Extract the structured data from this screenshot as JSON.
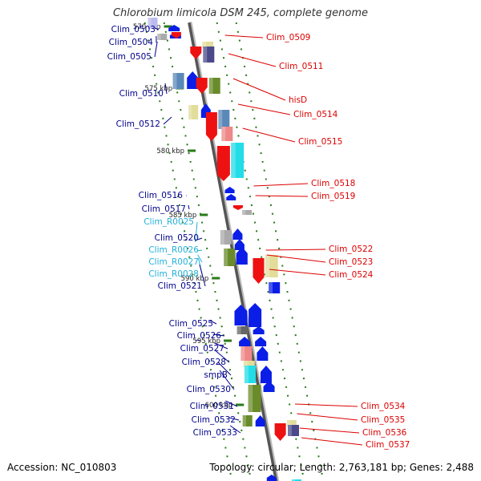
{
  "title": "Chlorobium limicola DSM 245, complete genome",
  "footer": {
    "accession": "Accession: NC_010803",
    "summary": "Topology: circular; Length: 2,763,181 bp; Genes: 2,488"
  },
  "colors": {
    "left_label": "#00008b",
    "right_label": "#dd0000",
    "rna_label": "#22b0d8",
    "backbone": "#999999",
    "tick": "#2a7a1a"
  },
  "scale_labels": [
    "570 kbp",
    "575 kbp",
    "580 kbp",
    "585 kbp",
    "590 kbp",
    "595 kbp",
    "600 kbp"
  ],
  "labels_left": [
    {
      "text": "Clim_0503",
      "kind": "gene"
    },
    {
      "text": "Clim_0504",
      "kind": "gene"
    },
    {
      "text": "Clim_0505",
      "kind": "gene"
    },
    {
      "text": "Clim_0510",
      "kind": "gene"
    },
    {
      "text": "Clim_0512",
      "kind": "gene"
    },
    {
      "text": "Clim_0516",
      "kind": "gene"
    },
    {
      "text": "Clim_0517",
      "kind": "gene"
    },
    {
      "text": "Clim_R0025",
      "kind": "rna"
    },
    {
      "text": "Clim_0520",
      "kind": "gene"
    },
    {
      "text": "Clim_R0026",
      "kind": "rna"
    },
    {
      "text": "Clim_R0027",
      "kind": "rna"
    },
    {
      "text": "Clim_R0028",
      "kind": "rna"
    },
    {
      "text": "Clim_0521",
      "kind": "gene"
    },
    {
      "text": "Clim_0525",
      "kind": "gene"
    },
    {
      "text": "Clim_0526",
      "kind": "gene"
    },
    {
      "text": "Clim_0527",
      "kind": "gene"
    },
    {
      "text": "Clim_0528",
      "kind": "gene"
    },
    {
      "text": "smpB",
      "kind": "gene"
    },
    {
      "text": "Clim_0530",
      "kind": "gene"
    },
    {
      "text": "Clim_0531",
      "kind": "gene"
    },
    {
      "text": "Clim_0532",
      "kind": "gene"
    },
    {
      "text": "Clim_0533",
      "kind": "gene"
    }
  ],
  "labels_right": [
    {
      "text": "Clim_0509",
      "kind": "gene"
    },
    {
      "text": "Clim_0511",
      "kind": "gene"
    },
    {
      "text": "hisD",
      "kind": "gene"
    },
    {
      "text": "Clim_0514",
      "kind": "gene"
    },
    {
      "text": "Clim_0515",
      "kind": "gene"
    },
    {
      "text": "Clim_0518",
      "kind": "gene"
    },
    {
      "text": "Clim_0519",
      "kind": "gene"
    },
    {
      "text": "Clim_0522",
      "kind": "gene"
    },
    {
      "text": "Clim_0523",
      "kind": "gene"
    },
    {
      "text": "Clim_0524",
      "kind": "gene"
    },
    {
      "text": "Clim_0534",
      "kind": "gene"
    },
    {
      "text": "Clim_0535",
      "kind": "gene"
    },
    {
      "text": "Clim_0536",
      "kind": "gene"
    },
    {
      "text": "Clim_0537",
      "kind": "gene"
    }
  ]
}
